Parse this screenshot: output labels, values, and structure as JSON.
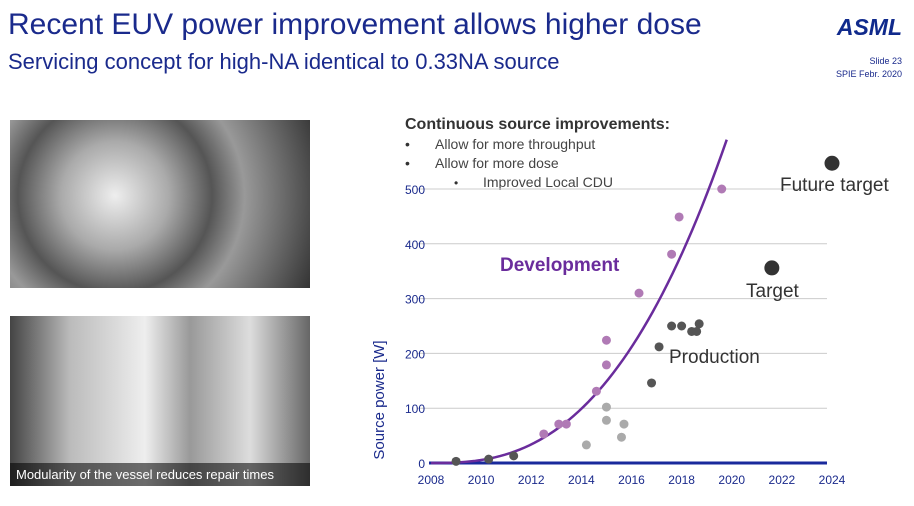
{
  "header": {
    "title": "Recent EUV power improvement allows higher dose",
    "subtitle": "Servicing concept for high-NA identical to 0.33NA source",
    "logo": "ASML",
    "slide": "Slide 23",
    "event": "SPIE Febr. 2020"
  },
  "photos": {
    "caption": "Modularity of the vessel reduces repair times"
  },
  "colors": {
    "title": "#1a2a8c",
    "development": "#6a2c9c",
    "dev_points": "#b07ab5",
    "production_early": "#aaaaaa",
    "production": "#555555",
    "target": "#333333"
  },
  "chart_data": {
    "type": "scatter",
    "notes_title": "Continuous source improvements:",
    "notes": [
      "Allow for more throughput",
      "Allow for more dose"
    ],
    "subnote": "Improved Local CDU",
    "ylabel": "Source power [W]",
    "xlabel": "",
    "xlim": [
      2008,
      2024
    ],
    "ylim": [
      0,
      500
    ],
    "xticks": [
      "2008",
      "2010",
      "2012",
      "2014",
      "2016",
      "2018",
      "2020",
      "2022",
      "2024"
    ],
    "yticks": [
      "0",
      "100",
      "200",
      "300",
      "400",
      "500"
    ],
    "grid": true,
    "annotations": {
      "development": "Development",
      "production": "Production",
      "target": "Target",
      "future": "Future target"
    },
    "series": [
      {
        "name": "Development",
        "points": [
          [
            2012.5,
            53
          ],
          [
            2013.1,
            71
          ],
          [
            2013.4,
            71
          ],
          [
            2014.6,
            131
          ],
          [
            2015.0,
            224
          ],
          [
            2015.0,
            179
          ],
          [
            2016.3,
            310
          ],
          [
            2017.6,
            381
          ],
          [
            2017.9,
            449
          ],
          [
            2019.6,
            500
          ]
        ]
      },
      {
        "name": "",
        "points": [
          [
            2014.2,
            33
          ],
          [
            2015.0,
            78
          ],
          [
            2015.0,
            102
          ],
          [
            2015.7,
            71
          ],
          [
            2015.6,
            47
          ]
        ]
      },
      {
        "name": "Production",
        "points": [
          [
            2009,
            3
          ],
          [
            2010.3,
            7
          ],
          [
            2011.3,
            13
          ],
          [
            2016.8,
            146
          ],
          [
            2017.1,
            212
          ],
          [
            2017.6,
            250
          ],
          [
            2018.0,
            250
          ],
          [
            2018.4,
            240
          ],
          [
            2018.6,
            240
          ],
          [
            2018.7,
            254
          ]
        ]
      },
      {
        "name": "Target",
        "points": [
          [
            2021.6,
            356
          ]
        ]
      },
      {
        "name": "Future target",
        "points": [
          [
            2024,
            547
          ]
        ]
      }
    ],
    "trend": {
      "name": "Development",
      "from": 2008,
      "to": 2019.8,
      "max": 590
    }
  }
}
